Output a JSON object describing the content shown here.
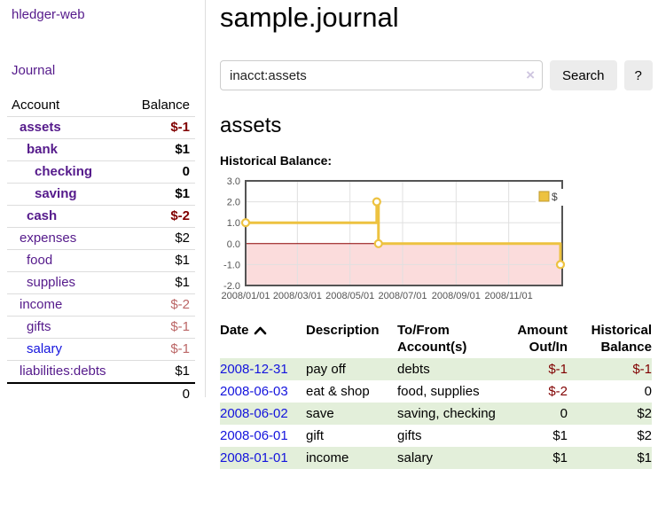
{
  "app": {
    "title": "hledger-web"
  },
  "sidebar": {
    "journal_link": "Journal",
    "header": {
      "account": "Account",
      "balance": "Balance"
    },
    "accounts": [
      {
        "name": "assets",
        "balance": "$-1"
      },
      {
        "name": "bank",
        "balance": "$1"
      },
      {
        "name": "checking",
        "balance": "0"
      },
      {
        "name": "saving",
        "balance": "$1"
      },
      {
        "name": "cash",
        "balance": "$-2"
      },
      {
        "name": "expenses",
        "balance": "$2"
      },
      {
        "name": "food",
        "balance": "$1"
      },
      {
        "name": "supplies",
        "balance": "$1"
      },
      {
        "name": "income",
        "balance": "$-2"
      },
      {
        "name": "gifts",
        "balance": "$-1"
      },
      {
        "name": "salary",
        "balance": "$-1"
      },
      {
        "name": "liabilities:debts",
        "balance": "$1"
      }
    ],
    "total": "0"
  },
  "header": {
    "title": "sample.journal"
  },
  "search": {
    "query": "inacct:assets",
    "clear_icon": "×",
    "button_label": "Search",
    "help_label": "?"
  },
  "account_page": {
    "title": "assets",
    "chart_label": "Historical Balance:"
  },
  "chart_data": {
    "type": "line",
    "title": "Historical Balance:",
    "series": [
      {
        "name": "$",
        "x": [
          "2008-01-01",
          "2008-06-01",
          "2008-06-03",
          "2008-12-31"
        ],
        "values": [
          1,
          2,
          0,
          -1
        ],
        "color": "#edc240",
        "steps": true,
        "markers": true
      }
    ],
    "x_range": [
      "2008-01-01",
      "2008-12-31"
    ],
    "ylim": [
      -2,
      3
    ],
    "y_ticks": [
      3.0,
      2.0,
      1.0,
      0.0,
      -1.0,
      -2.0
    ],
    "x_tick_dates": [
      "2008-01-01",
      "2008-03-01",
      "2008-05-01",
      "2008-07-01",
      "2008-09-01",
      "2008-11-01"
    ],
    "x_tick_labels": [
      "2008/01/01",
      "2008/03/01",
      "2008/05/01",
      "2008/07/01",
      "2008/09/01",
      "2008/11/01"
    ],
    "legend": {
      "label": "$",
      "position": "top-right"
    },
    "grid": true,
    "grid_color": "#e0e0e0",
    "axis_color": "#545454",
    "border_color": "#545454",
    "zero_line_color": "#8b0000",
    "negative_region_color": "#fbdcdc"
  },
  "register": {
    "columns": [
      "Date",
      "Description",
      "To/From Account(s)",
      "Amount Out/In",
      "Historical Balance"
    ],
    "sort_icon": "chevron-up",
    "rows": [
      {
        "date": "2008-12-31",
        "description": "pay off",
        "accounts": "debts",
        "amount": "$-1",
        "balance": "$-1"
      },
      {
        "date": "2008-06-03",
        "description": "eat & shop",
        "accounts": "food, supplies",
        "amount": "$-2",
        "balance": "0"
      },
      {
        "date": "2008-06-02",
        "description": "save",
        "accounts": "saving, checking",
        "amount": "0",
        "balance": "$2"
      },
      {
        "date": "2008-06-01",
        "description": "gift",
        "accounts": "gifts",
        "amount": "$1",
        "balance": "$2"
      },
      {
        "date": "2008-01-01",
        "description": "income",
        "accounts": "salary",
        "amount": "$1",
        "balance": "$1"
      }
    ]
  },
  "colors": {
    "link_purple": "#551a8b",
    "link_blue": "#1414dd",
    "negative": "#800000",
    "negative_muted": "#bb6666",
    "row_green": "#e3efda",
    "chart_series": "#edc240"
  }
}
